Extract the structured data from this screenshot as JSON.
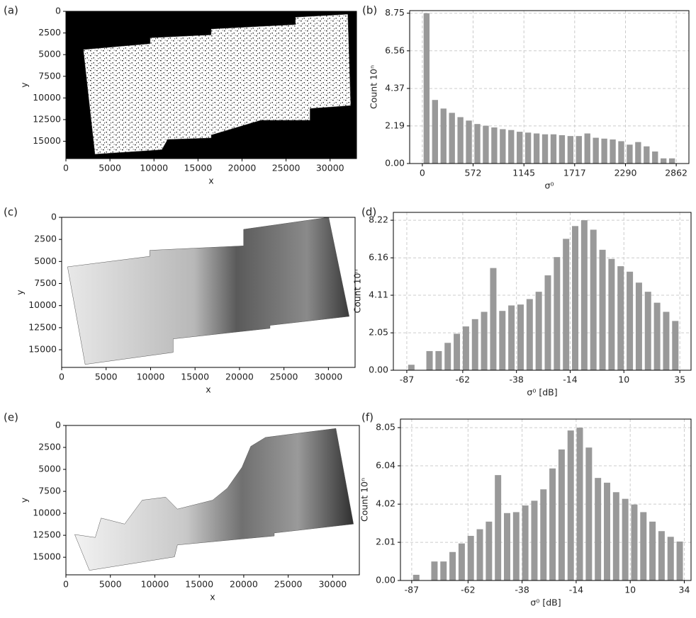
{
  "chart_data": [
    {
      "type": "image",
      "panel": "(a)",
      "xlabel": "x",
      "ylabel": "y",
      "style": "speckle",
      "xlim": [
        0,
        33000
      ],
      "ylim": [
        17000,
        0
      ],
      "xticks": [
        0,
        5000,
        10000,
        15000,
        20000,
        25000,
        30000
      ],
      "yticks": [
        0,
        2500,
        5000,
        7500,
        10000,
        12500,
        15000
      ]
    },
    {
      "type": "histogram",
      "panel": "(b)",
      "xlabel": "σ⁰",
      "ylabel": "Count 10ⁿ",
      "color": "#999999",
      "grid": true,
      "bins": [
        0,
        95.4,
        190.8,
        286.2,
        381.6,
        477,
        572.4,
        667.8,
        763.2,
        858.6,
        954,
        1049.4,
        1144.8,
        1240.2,
        1335.6,
        1431,
        1526.4,
        1621.8,
        1717.2,
        1812.6,
        1908,
        2003.4,
        2098.8,
        2194.2,
        2289.6,
        2385,
        2480.4,
        2575.8,
        2671.2,
        2766.6,
        2862
      ],
      "values": [
        8.75,
        3.7,
        3.2,
        2.95,
        2.7,
        2.5,
        2.3,
        2.2,
        2.1,
        2.0,
        1.95,
        1.85,
        1.8,
        1.75,
        1.7,
        1.7,
        1.65,
        1.6,
        1.6,
        1.75,
        1.5,
        1.45,
        1.4,
        1.3,
        1.1,
        1.25,
        1.0,
        0.7,
        0.3,
        0.3
      ],
      "xlim": [
        -143,
        3005
      ],
      "ylim": [
        0,
        8.9
      ],
      "xticks": [
        0,
        572,
        1145,
        1717,
        2290,
        2862
      ],
      "yticks": [
        {
          "value": 0,
          "label": "0.00"
        },
        2.19,
        4.37,
        6.56,
        8.75
      ]
    },
    {
      "type": "image",
      "panel": "(c)",
      "xlabel": "x",
      "ylabel": "y",
      "style": "full",
      "xlim": [
        0,
        33000
      ],
      "ylim": [
        17000,
        0
      ],
      "xticks": [
        0,
        5000,
        10000,
        15000,
        20000,
        25000,
        30000
      ],
      "yticks": [
        0,
        2500,
        5000,
        7500,
        10000,
        12500,
        15000
      ]
    },
    {
      "type": "histogram",
      "panel": "(d)",
      "xlabel": "σ⁰ [dB]",
      "ylabel": "Count 10ⁿ",
      "color": "#999999",
      "grid": true,
      "bins": [
        -87,
        -82.93,
        -78.87,
        -74.8,
        -70.73,
        -66.67,
        -62.6,
        -58.53,
        -54.47,
        -50.4,
        -46.33,
        -42.27,
        -38.2,
        -34.13,
        -30.07,
        -26,
        -21.93,
        -17.87,
        -13.8,
        -9.73,
        -5.67,
        -1.6,
        2.47,
        6.53,
        10.6,
        14.67,
        18.73,
        22.8,
        26.87,
        30.93,
        35
      ],
      "values": [
        0.3,
        0,
        1.05,
        1.05,
        1.5,
        2.0,
        2.4,
        2.8,
        3.2,
        5.6,
        3.25,
        3.55,
        3.6,
        3.9,
        4.3,
        5.2,
        6.2,
        7.2,
        7.9,
        8.22,
        7.7,
        6.6,
        6.1,
        5.7,
        5.4,
        4.8,
        4.3,
        3.7,
        3.2,
        2.7
      ],
      "xlim": [
        -93,
        40
      ],
      "ylim": [
        0,
        8.65
      ],
      "xticks": [
        -87,
        -62,
        -38,
        -14,
        10,
        35
      ],
      "yticks": [
        {
          "value": 0,
          "label": "0.00"
        },
        2.05,
        4.11,
        6.16,
        8.22
      ]
    },
    {
      "type": "image",
      "panel": "(e)",
      "xlabel": "x",
      "ylabel": "y",
      "style": "masked",
      "xlim": [
        0,
        33000
      ],
      "ylim": [
        17000,
        0
      ],
      "xticks": [
        0,
        5000,
        10000,
        15000,
        20000,
        25000,
        30000
      ],
      "yticks": [
        0,
        2500,
        5000,
        7500,
        10000,
        12500,
        15000
      ]
    },
    {
      "type": "histogram",
      "panel": "(f)",
      "xlabel": "σ⁰ [dB]",
      "ylabel": "Count 10ⁿ",
      "color": "#999999",
      "grid": true,
      "bins": [
        -87,
        -82.97,
        -78.93,
        -74.9,
        -70.87,
        -66.83,
        -62.8,
        -58.77,
        -54.73,
        -50.7,
        -46.67,
        -42.63,
        -38.6,
        -34.57,
        -30.53,
        -26.5,
        -22.47,
        -18.43,
        -14.4,
        -10.37,
        -6.33,
        -2.3,
        1.73,
        5.77,
        9.8,
        13.83,
        17.87,
        21.9,
        25.93,
        29.97,
        34
      ],
      "values": [
        0.3,
        0,
        1.0,
        1.0,
        1.5,
        1.95,
        2.35,
        2.7,
        3.1,
        5.55,
        3.55,
        3.6,
        3.95,
        4.2,
        4.8,
        5.9,
        6.9,
        7.9,
        8.05,
        7.0,
        5.4,
        5.15,
        4.65,
        4.3,
        4.0,
        3.6,
        3.1,
        2.6,
        2.3,
        2.05
      ],
      "xlim": [
        -92,
        37
      ],
      "ylim": [
        0,
        8.5
      ],
      "xticks": [
        -87,
        -62,
        -38,
        -14,
        10,
        34
      ],
      "yticks": [
        {
          "value": 0,
          "label": "0.00"
        },
        2.01,
        4.02,
        6.04,
        8.05
      ]
    }
  ]
}
